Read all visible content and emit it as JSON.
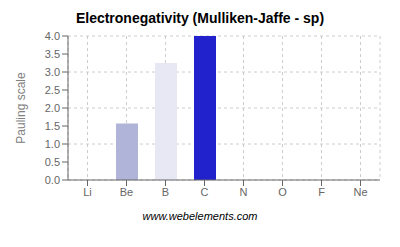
{
  "chart_data": {
    "type": "bar",
    "title": "Electronegativity (Mulliken-Jaffe - sp)",
    "y_label": "Pauling scale",
    "categories": [
      "Li",
      "Be",
      "B",
      "C",
      "N",
      "O",
      "F",
      "Ne"
    ],
    "values": [
      0.0,
      1.57,
      3.25,
      4.0,
      0.0,
      0.0,
      0.0,
      0.0
    ],
    "colors": [
      "#b0b0d8",
      "#b0b4d8",
      "#e8e8f4",
      "#2222cc",
      "#cc2222",
      "#ddcc22",
      "#cc5533",
      "#b0b0d8"
    ],
    "ylim": [
      0,
      4.0
    ],
    "yticks": [
      {
        "value": 0.0,
        "label": "0.0"
      },
      {
        "value": 0.5,
        "label": "0.5"
      },
      {
        "value": 1.0,
        "label": "1.0"
      },
      {
        "value": 1.5,
        "label": "1.5"
      },
      {
        "value": 2.0,
        "label": "2.0"
      },
      {
        "value": 2.5,
        "label": "2.5"
      },
      {
        "value": 3.0,
        "label": "3.0"
      },
      {
        "value": 3.5,
        "label": "3.5"
      },
      {
        "value": 4.0,
        "label": "4.0"
      }
    ],
    "grid": true,
    "annotations": [
      "www.webelements.com"
    ]
  }
}
